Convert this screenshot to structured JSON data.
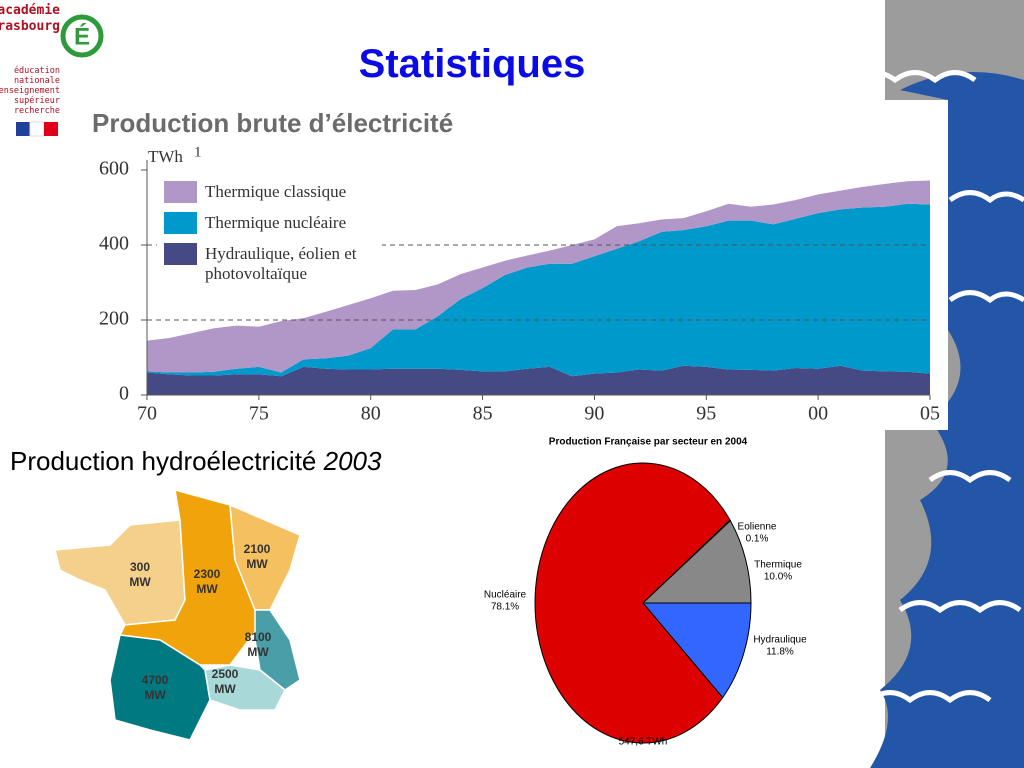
{
  "slide": {
    "title": "Statistiques"
  },
  "logo": {
    "name": [
      "académie",
      "Strasbourg"
    ],
    "lines": [
      "éducation",
      "nationale",
      "enseignement",
      "supérieur",
      "recherche"
    ]
  },
  "map": {
    "title": "Production hydroélectricité",
    "year": "2003",
    "unit": "MW",
    "regions": [
      300,
      2300,
      2100,
      8100,
      4700,
      2500
    ]
  },
  "chart_data": [
    {
      "type": "area",
      "title": "Production brute d’électricité",
      "y_label": "TWh",
      "footnote": "1",
      "x": [
        1970,
        1971,
        1972,
        1973,
        1974,
        1975,
        1976,
        1977,
        1978,
        1979,
        1980,
        1981,
        1982,
        1983,
        1984,
        1985,
        1986,
        1987,
        1988,
        1989,
        1990,
        1991,
        1992,
        1993,
        1994,
        1995,
        1996,
        1997,
        1998,
        1999,
        2000,
        2001,
        2002,
        2003,
        2004,
        2005
      ],
      "series": [
        {
          "name": "Hydraulique, éolien et photovoltaïque",
          "color": "#454a85",
          "values": [
            60,
            55,
            52,
            52,
            55,
            55,
            50,
            75,
            70,
            68,
            68,
            70,
            70,
            70,
            67,
            63,
            63,
            70,
            75,
            50,
            57,
            60,
            68,
            65,
            78,
            75,
            68,
            67,
            65,
            72,
            70,
            78,
            65,
            63,
            62,
            57
          ]
        },
        {
          "name": "Thermique nucléaire",
          "color": "#0099cc",
          "values": [
            3,
            5,
            8,
            10,
            15,
            20,
            10,
            20,
            28,
            37,
            57,
            105,
            105,
            140,
            188,
            222,
            257,
            270,
            275,
            300,
            313,
            330,
            342,
            370,
            362,
            375,
            397,
            398,
            390,
            398,
            415,
            417,
            435,
            439,
            448,
            451
          ]
        },
        {
          "name": "Thermique classique",
          "color": "#b196c8",
          "values": [
            82,
            92,
            105,
            116,
            115,
            107,
            137,
            110,
            124,
            135,
            133,
            103,
            105,
            85,
            67,
            55,
            38,
            32,
            35,
            50,
            45,
            60,
            48,
            33,
            32,
            40,
            45,
            37,
            53,
            50,
            50,
            50,
            55,
            61,
            60,
            64
          ]
        }
      ],
      "xlim": [
        1970,
        2005
      ],
      "xticks": [
        {
          "value": 1970,
          "label": "70"
        },
        {
          "value": 1975,
          "label": "75"
        },
        {
          "value": 1980,
          "label": "80"
        },
        {
          "value": 1985,
          "label": "85"
        },
        {
          "value": 1990,
          "label": "90"
        },
        {
          "value": 1995,
          "label": "95"
        },
        {
          "value": 2000,
          "label": "00"
        },
        {
          "value": 2005,
          "label": "05"
        }
      ],
      "ylim": [
        0,
        600
      ],
      "yticks": [
        0,
        200,
        400,
        600
      ],
      "grid": true,
      "legend": "top-left"
    },
    {
      "type": "pie",
      "title": "Production Française par secteur en 2004",
      "total_label": "547,6 TWh",
      "categories": [
        "Hydraulique",
        "Nucléaire",
        "Eolienne",
        "Thermique"
      ],
      "values": [
        11.8,
        78.1,
        0.1,
        10.0
      ],
      "value_labels": [
        "11.8%",
        "78.1%",
        "0.1%",
        "10.0%"
      ],
      "colors": [
        "#3366ff",
        "#dd0000",
        "#ffffff",
        "#888888"
      ]
    }
  ]
}
